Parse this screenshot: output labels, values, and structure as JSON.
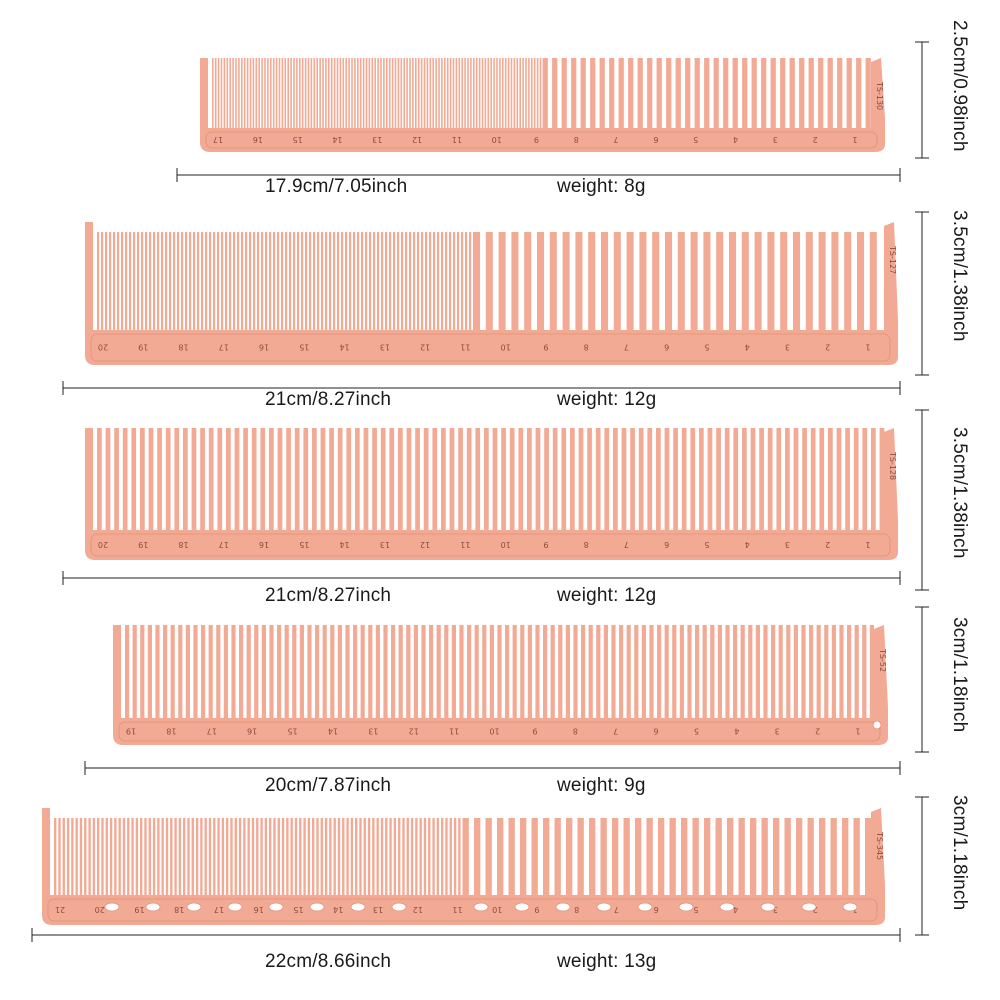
{
  "combs": [
    {
      "model": "TS-130",
      "length_label": "17.9cm/7.05inch",
      "weight_label": "weight:  8g",
      "height_label": "2.5cm/0.98inch",
      "ruler": [
        "1",
        "2",
        "3",
        "4",
        "5",
        "6",
        "7",
        "8",
        "9",
        "10",
        "11",
        "12",
        "13",
        "14",
        "15",
        "16",
        "17"
      ]
    },
    {
      "model": "TS-127",
      "length_label": "21cm/8.27inch",
      "weight_label": "weight:  12g",
      "height_label": "3.5cm/1.38inch",
      "ruler": [
        "1",
        "2",
        "3",
        "4",
        "5",
        "6",
        "7",
        "8",
        "9",
        "10",
        "11",
        "12",
        "13",
        "14",
        "15",
        "16",
        "17",
        "18",
        "19",
        "20"
      ]
    },
    {
      "model": "TS-128",
      "length_label": "21cm/8.27inch",
      "weight_label": "weight:  12g",
      "height_label": "3.5cm/1.38inch",
      "ruler": [
        "1",
        "2",
        "3",
        "4",
        "5",
        "6",
        "7",
        "8",
        "9",
        "10",
        "11",
        "12",
        "13",
        "14",
        "15",
        "16",
        "17",
        "18",
        "19",
        "20"
      ]
    },
    {
      "model": "TS-52",
      "length_label": "20cm/7.87inch",
      "weight_label": "weight:  9g",
      "height_label": "3cm/1.18inch",
      "ruler": [
        "1",
        "2",
        "3",
        "4",
        "5",
        "6",
        "7",
        "8",
        "9",
        "10",
        "11",
        "12",
        "13",
        "14",
        "15",
        "16",
        "17",
        "18",
        "19"
      ]
    },
    {
      "model": "TS-345",
      "length_label": "22cm/8.66inch",
      "weight_label": "weight:  13g",
      "height_label": "3cm/1.18inch",
      "ruler": [
        "1",
        "2",
        "3",
        "4",
        "5",
        "6",
        "7",
        "8",
        "9",
        "10",
        "11",
        "12",
        "13",
        "14",
        "15",
        "16",
        "17",
        "18",
        "19",
        "20",
        "21"
      ]
    }
  ],
  "colors": {
    "comb": "#f2aa95",
    "comb_dark": "#e0907a",
    "ruler_text": "#8a4d3d",
    "line": "#222222"
  }
}
